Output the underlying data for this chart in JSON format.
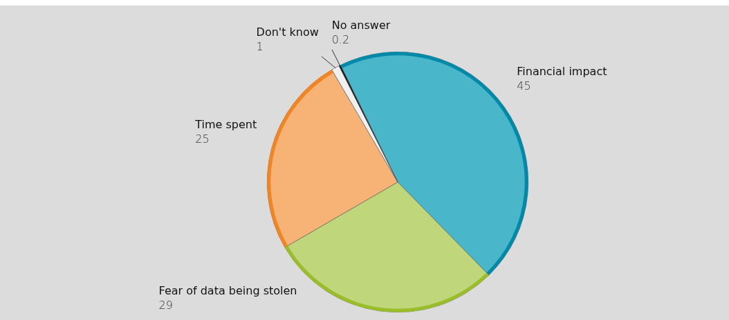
{
  "chart_data": {
    "type": "pie",
    "categories": [
      "Financial impact",
      "Fear of data being stolen",
      "Time spent",
      "Don't know",
      "No answer"
    ],
    "values": [
      45,
      29,
      25,
      1,
      0.2
    ],
    "colors": [
      "#4ab6c9",
      "#c0d67a",
      "#f7b375",
      "#f0f0f0",
      "#111111"
    ],
    "data_labels": true,
    "legend": false
  }
}
